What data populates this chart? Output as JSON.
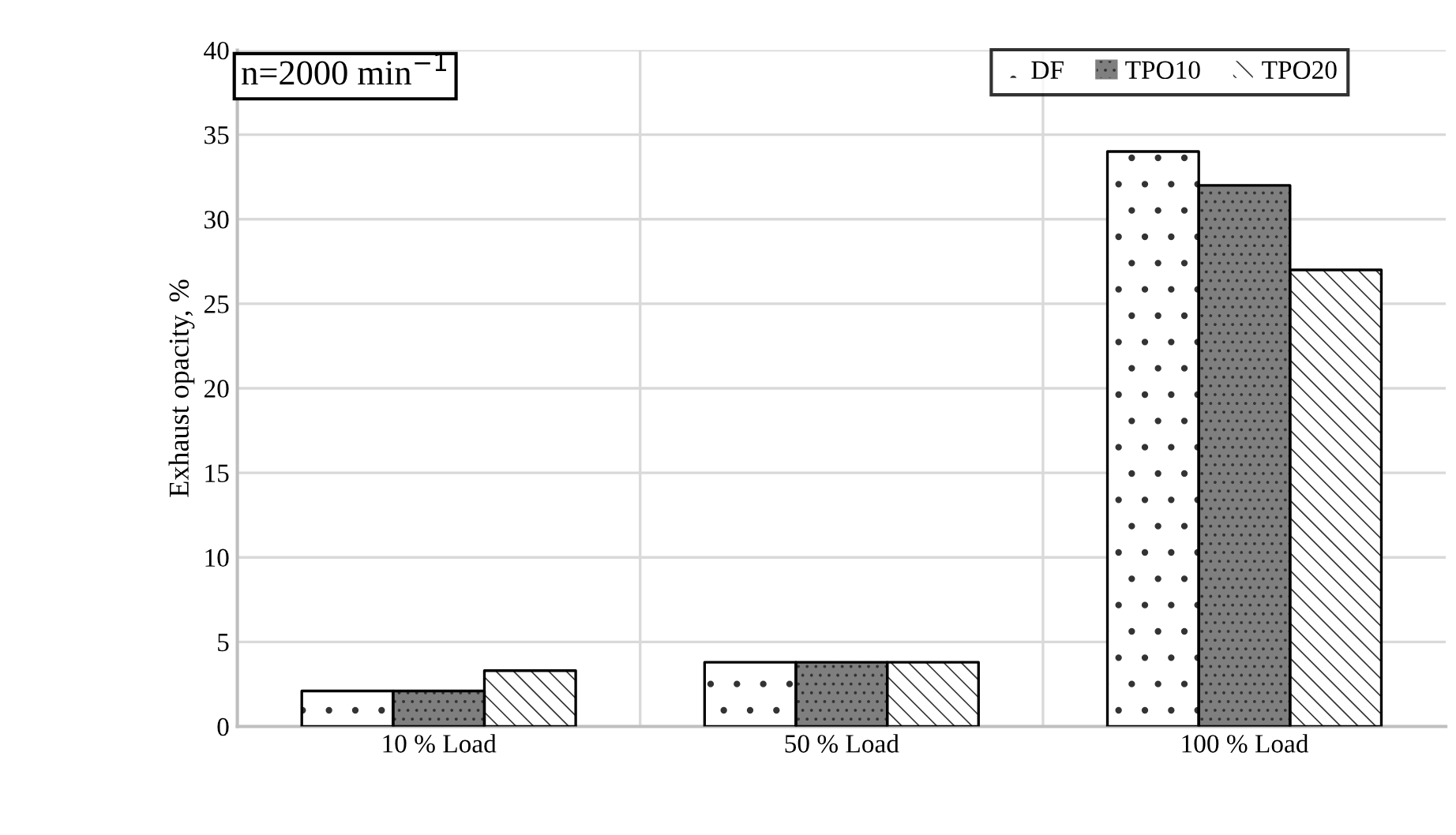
{
  "chart_data": {
    "type": "bar",
    "ylabel": "Exhaust opacity, %",
    "categories": [
      "10 % Load",
      "50 % Load",
      "100 % Load"
    ],
    "series": [
      {
        "name": "DF",
        "color": "#ffffff",
        "values": [
          2.1,
          3.8,
          34
        ]
      },
      {
        "name": "TPO10",
        "color": "#7f7f7f",
        "values": [
          2.1,
          3.8,
          32
        ]
      },
      {
        "name": "TPO20",
        "color": "#ffffff",
        "values": [
          3.3,
          3.8,
          27
        ]
      }
    ],
    "ylim": [
      0,
      40
    ],
    "yticks": [
      0,
      5,
      10,
      15,
      20,
      25,
      30,
      35,
      40
    ],
    "grid": true,
    "legend": "top right",
    "annotations": [
      "n=2000 min$^{−1}$"
    ]
  }
}
